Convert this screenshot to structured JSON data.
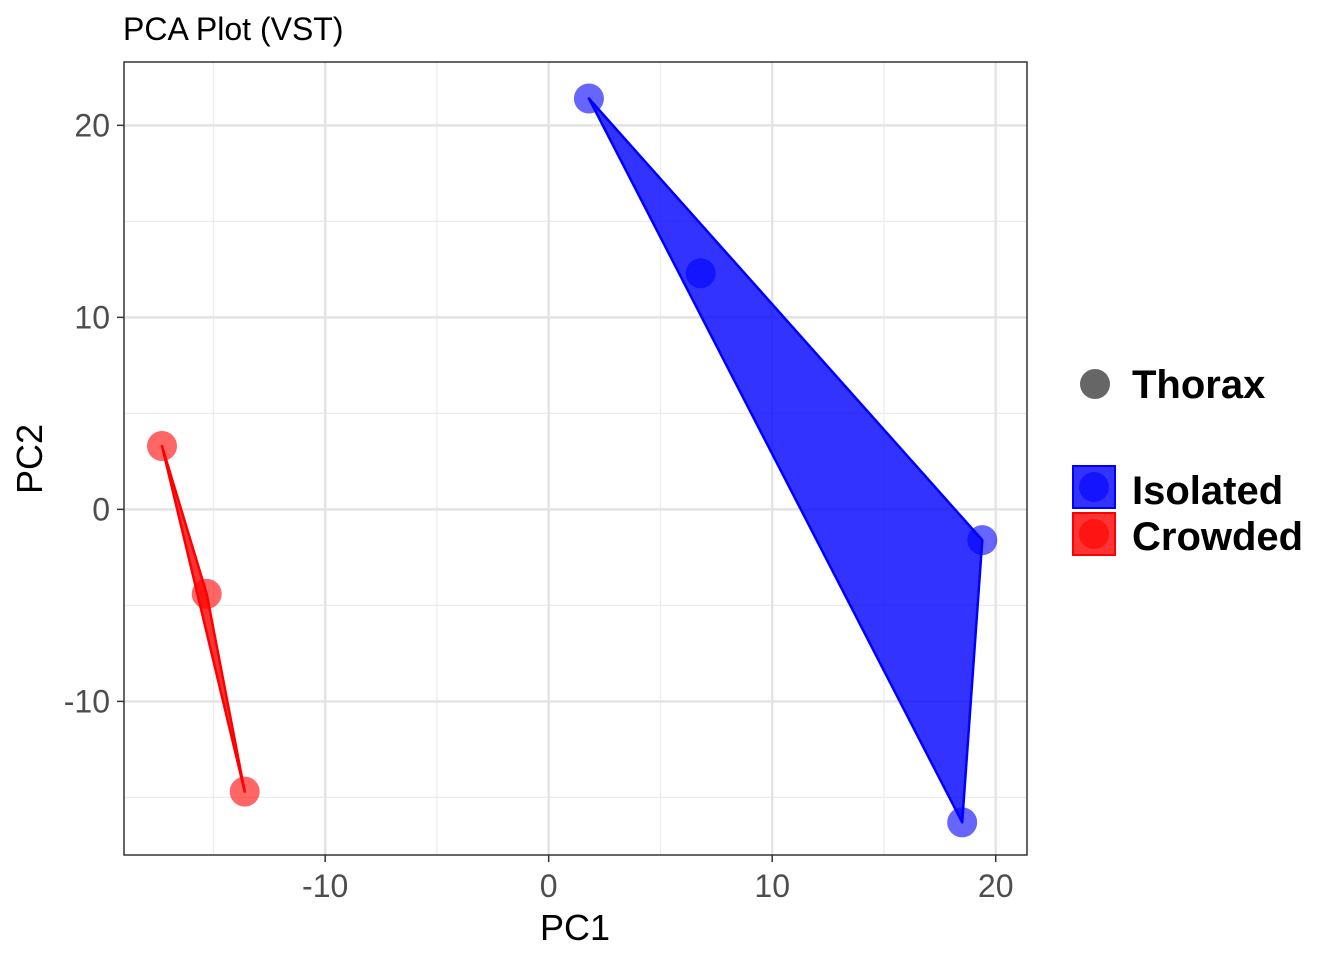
{
  "chart_data": {
    "type": "scatter",
    "title": "PCA Plot (VST)",
    "xlabel": "PC1",
    "ylabel": "PC2",
    "xlim": [
      -19.0,
      21.4
    ],
    "ylim": [
      -18.0,
      23.3
    ],
    "x_ticks": [
      -10,
      0,
      10,
      20
    ],
    "y_ticks": [
      -10,
      0,
      10,
      20
    ],
    "x_tick_labels": [
      "-10",
      "0",
      "10",
      "20"
    ],
    "y_tick_labels": [
      "-10",
      "0",
      "10",
      "20"
    ],
    "grid": true,
    "shape_legend": {
      "label": "Thorax",
      "color": "#666666"
    },
    "series": [
      {
        "name": "Isolated",
        "color": "#0000ff",
        "points": [
          {
            "x": 1.8,
            "y": 21.4
          },
          {
            "x": 6.8,
            "y": 12.3
          },
          {
            "x": 19.4,
            "y": -1.6
          },
          {
            "x": 18.5,
            "y": -16.3
          }
        ]
      },
      {
        "name": "Crowded",
        "color": "#ff0000",
        "points": [
          {
            "x": -17.3,
            "y": 3.3
          },
          {
            "x": -15.3,
            "y": -4.4
          },
          {
            "x": -13.6,
            "y": -14.7
          }
        ]
      }
    ]
  }
}
